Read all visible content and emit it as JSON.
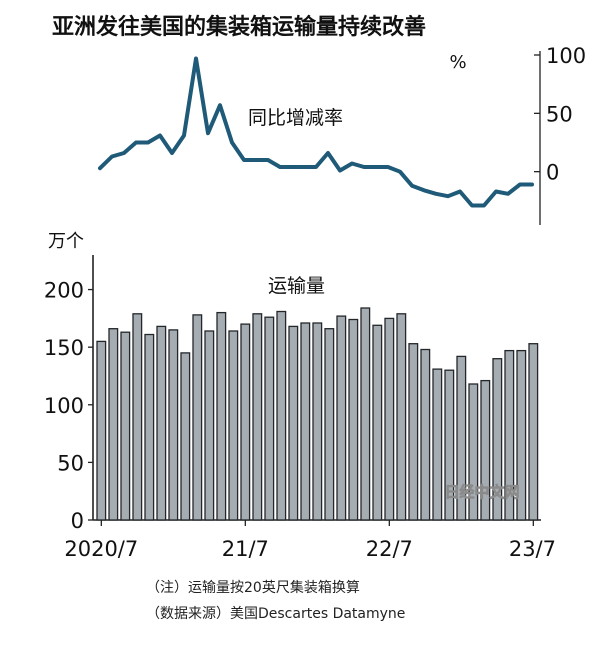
{
  "title": "亚洲发往美国的集装箱运输量持续改善",
  "watermark": "日经中文网",
  "notes": {
    "line1": "（注）运输量按20英尺集装箱换算",
    "line2": "（数据来源）美国Descartes Datamyne"
  },
  "chart_data": [
    {
      "type": "line",
      "series_label": "同比增减率",
      "unit": "%",
      "y_ticks": [
        "100",
        "50",
        "0"
      ],
      "ylim": [
        -50,
        100
      ],
      "x": [
        "2020/7",
        "2020/8",
        "2020/9",
        "2020/10",
        "2020/11",
        "2020/12",
        "2021/1",
        "2021/2",
        "2021/3",
        "2021/4",
        "2021/5",
        "2021/6",
        "2021/7",
        "2021/8",
        "2021/9",
        "2021/10",
        "2021/11",
        "2021/12",
        "2022/1",
        "2022/2",
        "2022/3",
        "2022/4",
        "2022/5",
        "2022/6",
        "2022/7",
        "2022/8",
        "2022/9",
        "2022/10",
        "2022/11",
        "2022/12",
        "2023/1",
        "2023/2",
        "2023/3",
        "2023/4",
        "2023/5",
        "2023/6",
        "2023/7"
      ],
      "values": [
        3,
        13,
        16,
        25,
        25,
        31,
        16,
        31,
        97,
        33,
        57,
        25,
        10,
        10,
        10,
        4,
        4,
        4,
        4,
        16,
        1,
        7,
        4,
        4,
        4,
        0,
        -12,
        -16,
        -19,
        -21,
        -17,
        -29,
        -29,
        -17,
        -19,
        -11,
        -11
      ],
      "color": "#1f5a78",
      "grid": false
    },
    {
      "type": "bar",
      "series_label": "运输量",
      "unit": "万个",
      "y_ticks": [
        "200",
        "150",
        "100",
        "50",
        "0"
      ],
      "ylim": [
        0,
        230
      ],
      "x_tick_labels": [
        "2020/7",
        "21/7",
        "22/7",
        "23/7"
      ],
      "x": [
        "2020/7",
        "2020/8",
        "2020/9",
        "2020/10",
        "2020/11",
        "2020/12",
        "2021/1",
        "2021/2",
        "2021/3",
        "2021/4",
        "2021/5",
        "2021/6",
        "2021/7",
        "2021/8",
        "2021/9",
        "2021/10",
        "2021/11",
        "2021/12",
        "2022/1",
        "2022/2",
        "2022/3",
        "2022/4",
        "2022/5",
        "2022/6",
        "2022/7",
        "2022/8",
        "2022/9",
        "2022/10",
        "2022/11",
        "2022/12",
        "2023/1",
        "2023/2",
        "2023/3",
        "2023/4",
        "2023/5",
        "2023/6",
        "2023/7"
      ],
      "values": [
        155,
        166,
        163,
        179,
        161,
        168,
        165,
        145,
        178,
        164,
        180,
        164,
        170,
        179,
        176,
        181,
        168,
        171,
        171,
        166,
        177,
        174,
        184,
        169,
        175,
        179,
        153,
        148,
        131,
        130,
        142,
        118,
        121,
        140,
        147,
        147,
        153
      ],
      "color": "#a5adb3",
      "edge_color": "#23272a",
      "grid": false
    }
  ]
}
